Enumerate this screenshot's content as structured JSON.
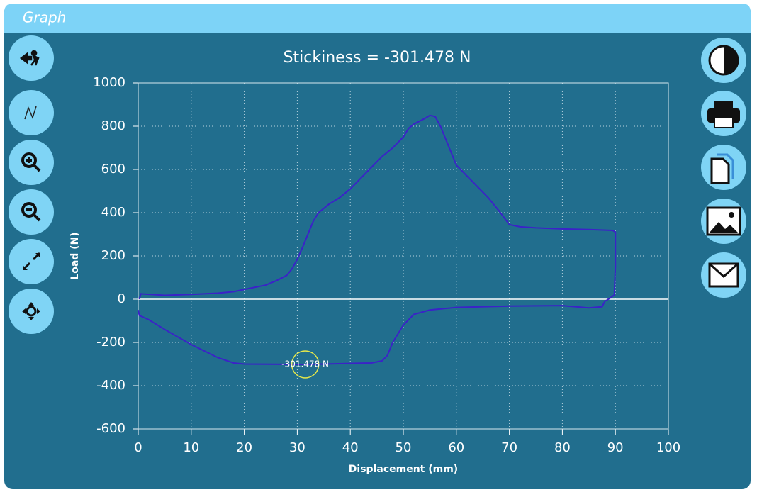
{
  "header": {
    "title": "Graph"
  },
  "chart_data": {
    "type": "line",
    "title": "Stickiness = -301.478 N",
    "x_label": "Displacement (mm)",
    "y_label": "Load (N)",
    "xlim": [
      0,
      100
    ],
    "xticks": [
      0,
      10,
      20,
      30,
      40,
      50,
      60,
      70,
      80,
      90,
      100
    ],
    "ylim": [
      -600,
      1000
    ],
    "yticks": [
      -600,
      -400,
      -200,
      0,
      200,
      400,
      600,
      800,
      1000
    ],
    "grid": true,
    "zero_line": true,
    "color": "#3b22c8",
    "x": [
      0.2,
      0.5,
      5,
      10,
      15,
      18,
      20,
      24,
      26,
      28,
      29,
      30,
      31,
      32,
      33,
      34,
      36,
      38,
      40,
      42,
      44,
      46,
      48,
      50,
      51,
      52,
      54,
      55,
      56,
      57,
      58,
      60,
      62,
      64,
      66,
      68,
      70,
      72,
      75,
      80,
      85,
      89.5,
      90,
      90,
      89.8,
      89,
      88,
      87.5,
      85,
      80,
      70,
      60,
      55,
      52,
      50,
      48,
      47,
      46,
      44,
      40,
      35,
      31.5,
      25,
      20,
      18,
      15,
      10,
      5,
      2,
      0.2,
      0
    ],
    "values": [
      0,
      25,
      18,
      22,
      28,
      35,
      45,
      65,
      85,
      110,
      140,
      185,
      240,
      300,
      360,
      400,
      440,
      470,
      510,
      560,
      610,
      660,
      700,
      750,
      790,
      810,
      835,
      850,
      845,
      800,
      740,
      620,
      570,
      520,
      470,
      410,
      345,
      335,
      330,
      325,
      322,
      318,
      310,
      150,
      20,
      5,
      -10,
      -35,
      -40,
      -30,
      -32,
      -38,
      -50,
      -70,
      -120,
      -200,
      -260,
      -285,
      -295,
      -297,
      -300,
      -301.478,
      -301,
      -300,
      -295,
      -270,
      -210,
      -140,
      -95,
      -75,
      -50
    ],
    "annotation": {
      "text": "-301.478 N",
      "x": 31.5,
      "y": -301.478
    }
  }
}
